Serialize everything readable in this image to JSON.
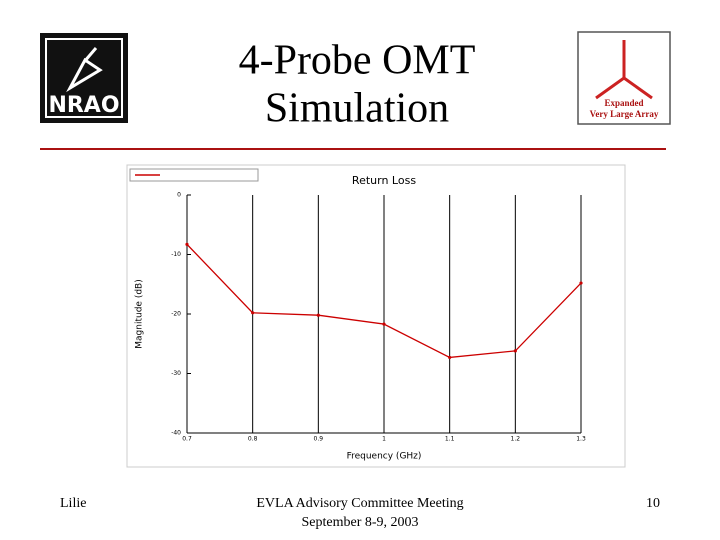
{
  "slide": {
    "title": [
      "4-Probe OMT",
      "Simulation"
    ],
    "logo_left": "NRAO",
    "logo_right": [
      "Expanded",
      "Very Large Array"
    ],
    "footer": {
      "left": "Lilie",
      "center": [
        "EVLA Advisory Committee Meeting",
        "September 8-9, 2003"
      ],
      "right": "10"
    }
  },
  "chart_data": {
    "type": "line",
    "title": "Return Loss",
    "x_label": "Frequency (GHz)",
    "y_label": "Magnitude (dB)",
    "x": [
      0.7,
      0.8,
      0.9,
      1.0,
      1.1,
      1.2,
      1.3
    ],
    "series": [
      {
        "color": "#cc0000",
        "values": [
          -8.3,
          -19.8,
          -20.2,
          -21.7,
          -27.3,
          -26.2,
          -14.8
        ]
      }
    ],
    "xlim": [
      0.7,
      1.3
    ],
    "xticks": [
      0.7,
      0.8,
      0.9,
      1.0,
      1.1,
      1.2,
      1.3
    ],
    "ylim": [
      -40,
      0
    ],
    "yticks": [
      0,
      -10,
      -20,
      -30,
      -40
    ],
    "grid": "x"
  }
}
